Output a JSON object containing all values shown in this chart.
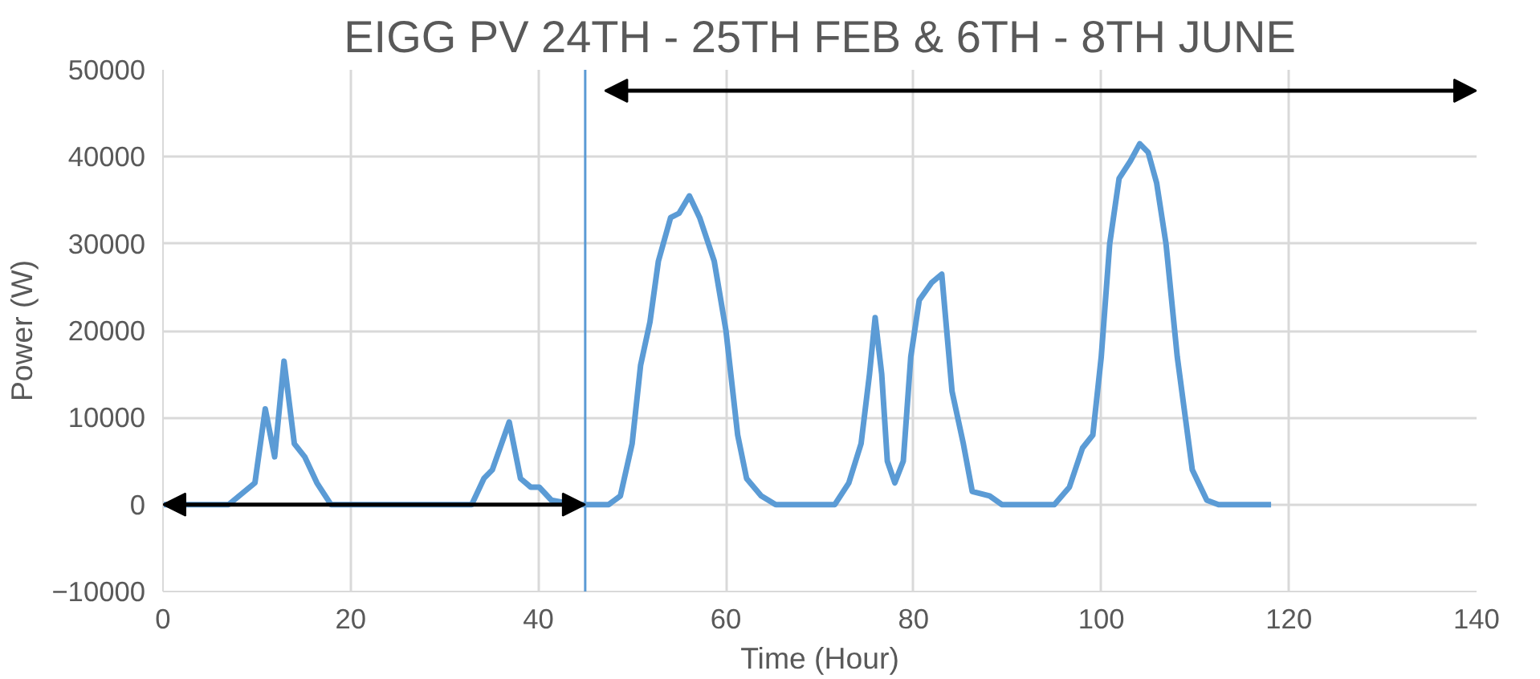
{
  "chart_data": {
    "type": "line",
    "title": "EIGG PV 24TH - 25TH FEB & 6TH - 8TH JUNE",
    "xlabel": "Time (Hour)",
    "ylabel": "Power (W)",
    "series": [
      {
        "color": "#5b9bd5",
        "x": [
          0,
          7,
          9.8,
          10.9,
          11.9,
          12.9,
          14,
          15.1,
          16.4,
          17.9,
          32.9,
          34.2,
          35.1,
          36.9,
          38.1,
          39.2,
          40.1,
          41.4,
          43.9,
          45,
          47.5,
          48.75,
          50,
          50.9,
          51.9,
          52.8,
          54.1,
          55,
          56.1,
          57.2,
          58.75,
          60,
          61.25,
          62.2,
          63.75,
          65.3,
          71.6,
          73.1,
          74.4,
          75.3,
          75.9,
          76.6,
          77.2,
          78,
          78.9,
          79.7,
          80.6,
          81.9,
          83,
          84.1,
          85.3,
          86.25,
          88.1,
          89.4,
          95,
          96.6,
          98,
          99.1,
          100,
          100.9,
          101.9,
          103.1,
          104.1,
          105,
          105.9,
          106.9,
          108.1,
          109.7,
          111.25,
          112.5,
          118.1
        ],
        "values": [
          0,
          0,
          2500,
          11000,
          5500,
          16500,
          7000,
          5500,
          2500,
          0,
          0,
          3000,
          4000,
          9500,
          3000,
          2000,
          2000,
          500,
          0,
          0,
          0,
          1000,
          7000,
          16000,
          21000,
          28000,
          33000,
          33500,
          35500,
          33000,
          28000,
          20000,
          8000,
          3000,
          1000,
          0,
          0,
          2500,
          7000,
          15000,
          21500,
          15000,
          5000,
          2500,
          5000,
          17000,
          23500,
          25500,
          26500,
          13000,
          7000,
          1500,
          1000,
          0,
          0,
          2000,
          6500,
          8000,
          17000,
          30000,
          37500,
          39500,
          41500,
          40500,
          37000,
          30000,
          17000,
          4000,
          500,
          0,
          0
        ]
      }
    ],
    "xlim": [
      0,
      140
    ],
    "xticks": [
      0,
      20,
      40,
      60,
      80,
      100,
      120,
      140
    ],
    "ylim": [
      -10000,
      50000
    ],
    "yticks": [
      -10000,
      0,
      10000,
      20000,
      30000,
      40000,
      50000
    ],
    "ref_lines": [
      {
        "axis": "x",
        "value": 45,
        "color": "#5b9bd5"
      }
    ],
    "grid": true,
    "marker": "none",
    "line_style": "solid"
  }
}
